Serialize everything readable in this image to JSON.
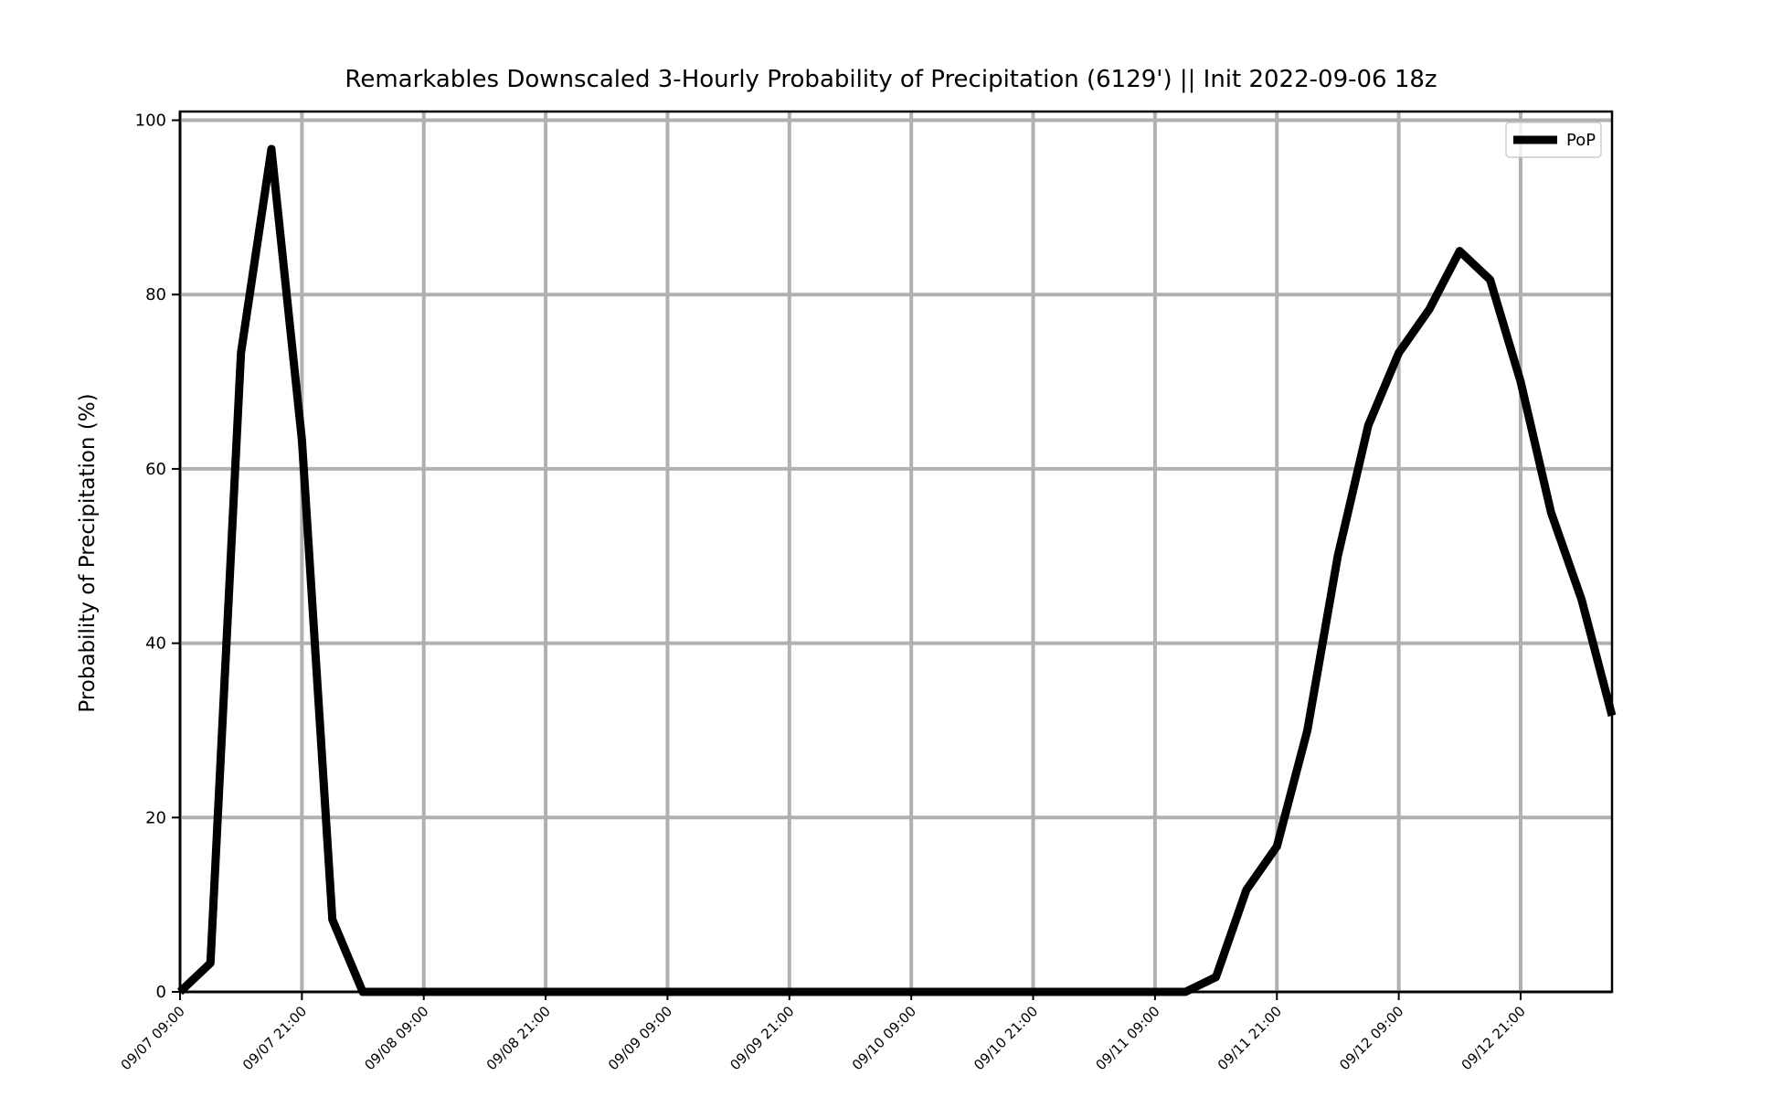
{
  "chart_data": {
    "type": "line",
    "title": "Remarkables Downscaled 3-Hourly Probability of Precipitation (6129') || Init 2022-09-06 18z",
    "xlabel": "",
    "ylabel": "Probability of Precipitation (%)",
    "ylim": [
      0,
      101
    ],
    "xlim_hours": [
      0,
      141
    ],
    "y_ticks": [
      0,
      20,
      40,
      60,
      80,
      100
    ],
    "y_tick_labels": [
      "0",
      "20",
      "40",
      "60",
      "80",
      "100"
    ],
    "x_ticks_hours": [
      0,
      12,
      24,
      36,
      48,
      60,
      72,
      84,
      96,
      108,
      120,
      132
    ],
    "x_tick_labels": [
      "09/07 09:00",
      "09/07 21:00",
      "09/08 09:00",
      "09/08 21:00",
      "09/09 09:00",
      "09/09 21:00",
      "09/10 09:00",
      "09/10 21:00",
      "09/11 09:00",
      "09/11 21:00",
      "09/12 09:00",
      "09/12 21:00"
    ],
    "grid": true,
    "legend_position": "top-right",
    "series": [
      {
        "name": "PoP",
        "color": "#000000",
        "x_hours": [
          0,
          3,
          6,
          9,
          12,
          15,
          18,
          21,
          24,
          27,
          30,
          33,
          36,
          39,
          42,
          45,
          48,
          51,
          54,
          57,
          60,
          63,
          66,
          69,
          72,
          75,
          78,
          81,
          84,
          87,
          90,
          93,
          96,
          99,
          102,
          105,
          108,
          111,
          114,
          117,
          120,
          123,
          126,
          129,
          132,
          135,
          138,
          141
        ],
        "values": [
          0,
          3.3,
          73.3,
          96.7,
          63.3,
          8.3,
          0,
          0,
          0,
          0,
          0,
          0,
          0,
          0,
          0,
          0,
          0,
          0,
          0,
          0,
          0,
          0,
          0,
          0,
          0,
          0,
          0,
          0,
          0,
          0,
          0,
          0,
          0,
          0,
          1.7,
          11.7,
          16.7,
          30,
          50,
          65,
          73.3,
          78.3,
          85,
          81.7,
          70,
          55,
          45,
          31.7
        ]
      }
    ]
  }
}
